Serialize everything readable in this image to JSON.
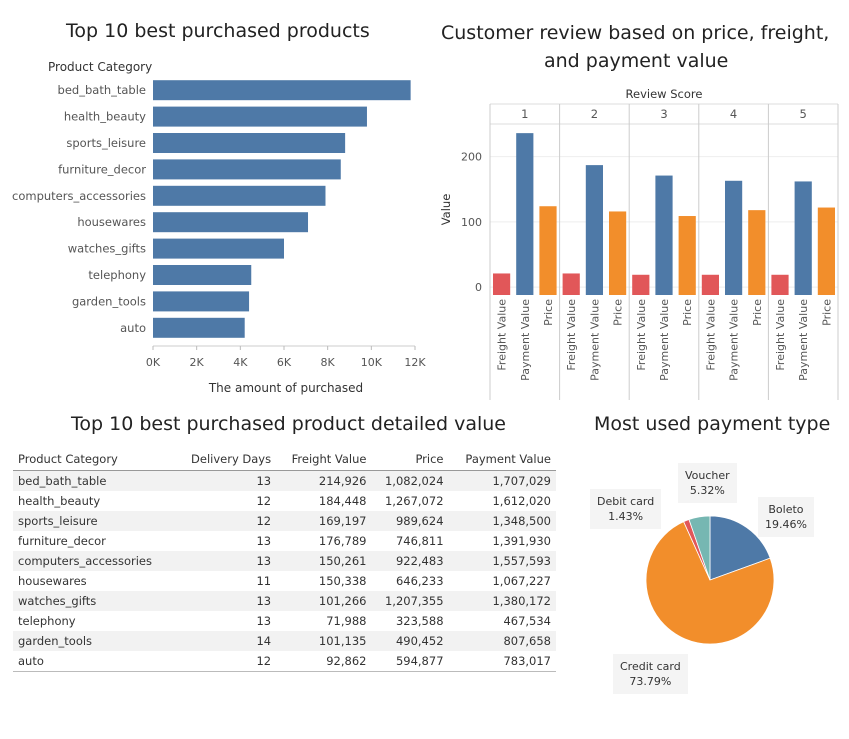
{
  "titles": {
    "top10": "Top 10 best purchased products",
    "review_line1": "Customer review based on price, freight,",
    "review_line2": "and payment value",
    "detail": "Top 10 best purchased product detailed value",
    "payment": "Most used payment type"
  },
  "chart_data": [
    {
      "type": "bar",
      "orientation": "horizontal",
      "title": "Top 10 best purchased products",
      "ylabel": "Product Category",
      "xlabel": "The amount of purchased",
      "categories": [
        "bed_bath_table",
        "health_beauty",
        "sports_leisure",
        "furniture_decor",
        "computers_accessories",
        "housewares",
        "watches_gifts",
        "telephony",
        "garden_tools",
        "auto"
      ],
      "values": [
        11800,
        9800,
        8800,
        8600,
        7900,
        7100,
        6000,
        4500,
        4400,
        4200
      ],
      "xlim": [
        0,
        12000
      ],
      "ticks": [
        0,
        2000,
        4000,
        6000,
        8000,
        10000,
        12000
      ],
      "tick_labels": [
        "0K",
        "2K",
        "4K",
        "6K",
        "8K",
        "10K",
        "12K"
      ],
      "color": "#4e79a7"
    },
    {
      "type": "bar",
      "title": "Customer review based on price, freight, and payment value",
      "column_header": "Review Score",
      "facets": [
        "1",
        "2",
        "3",
        "4",
        "5"
      ],
      "categories": [
        "Freight Value",
        "Payment Value",
        "Price"
      ],
      "colors": [
        "#e15759",
        "#4e79a7",
        "#f28e2b"
      ],
      "ylabel": "Value",
      "ylim": [
        -12,
        250
      ],
      "yticks": [
        0,
        100,
        200
      ],
      "values": [
        [
          21,
          236,
          124
        ],
        [
          21,
          187,
          116
        ],
        [
          19,
          171,
          109
        ],
        [
          19,
          163,
          118
        ],
        [
          19,
          162,
          122
        ]
      ]
    },
    {
      "type": "table",
      "title": "Top 10 best purchased product detailed value",
      "columns": [
        "Product Category",
        "Delivery Days",
        "Freight Value",
        "Price",
        "Payment Value"
      ],
      "rows": [
        [
          "bed_bath_table",
          "13",
          "214,926",
          "1,082,024",
          "1,707,029"
        ],
        [
          "health_beauty",
          "12",
          "184,448",
          "1,267,072",
          "1,612,020"
        ],
        [
          "sports_leisure",
          "12",
          "169,197",
          "989,624",
          "1,348,500"
        ],
        [
          "furniture_decor",
          "13",
          "176,789",
          "746,811",
          "1,391,930"
        ],
        [
          "computers_accessories",
          "13",
          "150,261",
          "922,483",
          "1,557,593"
        ],
        [
          "housewares",
          "11",
          "150,338",
          "646,233",
          "1,067,227"
        ],
        [
          "watches_gifts",
          "13",
          "101,266",
          "1,207,355",
          "1,380,172"
        ],
        [
          "telephony",
          "13",
          "71,988",
          "323,588",
          "467,534"
        ],
        [
          "garden_tools",
          "14",
          "101,135",
          "490,452",
          "807,658"
        ],
        [
          "auto",
          "12",
          "92,862",
          "594,877",
          "783,017"
        ]
      ]
    },
    {
      "type": "pie",
      "title": "Most used payment type",
      "slices": [
        {
          "label": "Boleto",
          "value": 19.46,
          "text": "19.46%",
          "color": "#4e79a7"
        },
        {
          "label": "Credit card",
          "value": 73.79,
          "text": "73.79%",
          "color": "#f28e2b"
        },
        {
          "label": "Debit card",
          "value": 1.43,
          "text": "1.43%",
          "color": "#e15759"
        },
        {
          "label": "Voucher",
          "value": 5.32,
          "text": "5.32%",
          "color": "#76b7b2"
        }
      ]
    }
  ]
}
